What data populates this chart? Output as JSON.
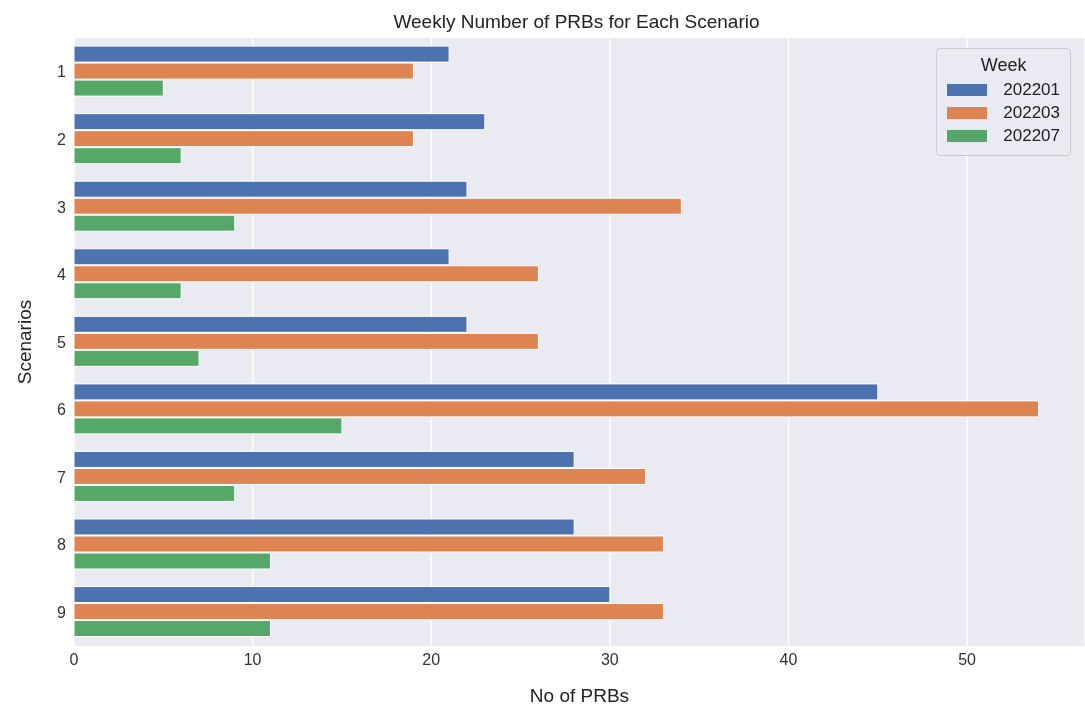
{
  "chart_data": {
    "type": "bar",
    "orientation": "horizontal",
    "title": "Weekly Number of PRBs for Each Scenario",
    "xlabel": "No of PRBs",
    "ylabel": "Scenarios",
    "legend_title": "Week",
    "legend": "top right",
    "grid": "x",
    "categories": [
      "1",
      "2",
      "3",
      "4",
      "5",
      "6",
      "7",
      "8",
      "9"
    ],
    "series": [
      {
        "name": "202201",
        "color": "#4c72b0",
        "values": [
          21,
          23,
          22,
          21,
          22,
          45,
          28,
          28,
          30
        ]
      },
      {
        "name": "202203",
        "color": "#dd8452",
        "values": [
          19,
          19,
          34,
          26,
          26,
          54,
          32,
          33,
          33
        ]
      },
      {
        "name": "202207",
        "color": "#55a868",
        "values": [
          5,
          6,
          9,
          6,
          7,
          15,
          9,
          11,
          11
        ]
      }
    ],
    "xlim": [
      0,
      56.6
    ],
    "xticks": [
      0,
      10,
      20,
      30,
      40,
      50
    ]
  }
}
